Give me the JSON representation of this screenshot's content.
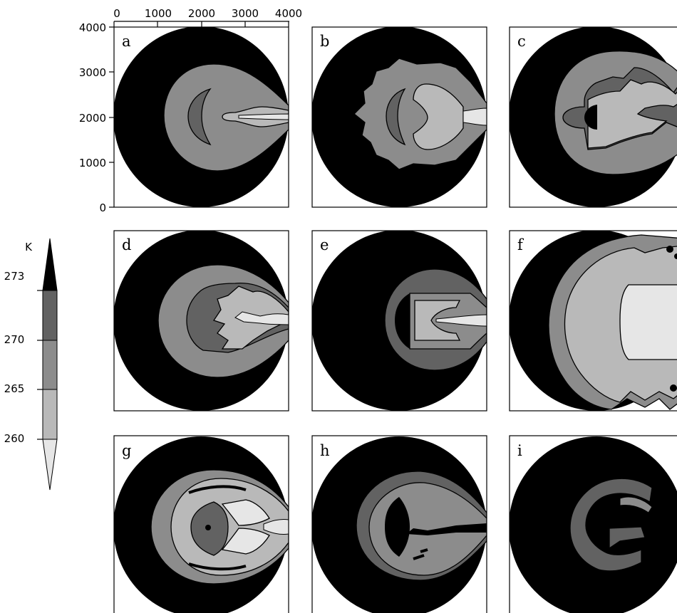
{
  "axes": {
    "x_ticks": [
      "0",
      "1000",
      "2000",
      "3000",
      "4000"
    ],
    "y_ticks": [
      "4000",
      "3000",
      "2000",
      "1000",
      "0"
    ]
  },
  "colorbar": {
    "unit": "K",
    "levels": [
      "273",
      "270",
      "265",
      "260"
    ],
    "colors": [
      "#000000",
      "#626262",
      "#8c8c8c",
      "#b9b9b9",
      "#e6e6e6"
    ]
  },
  "panels": [
    {
      "letter": "a"
    },
    {
      "letter": "b"
    },
    {
      "letter": "c"
    },
    {
      "letter": "d"
    },
    {
      "letter": "e"
    },
    {
      "letter": "f"
    },
    {
      "letter": "g"
    },
    {
      "letter": "h"
    },
    {
      "letter": "i"
    }
  ]
}
